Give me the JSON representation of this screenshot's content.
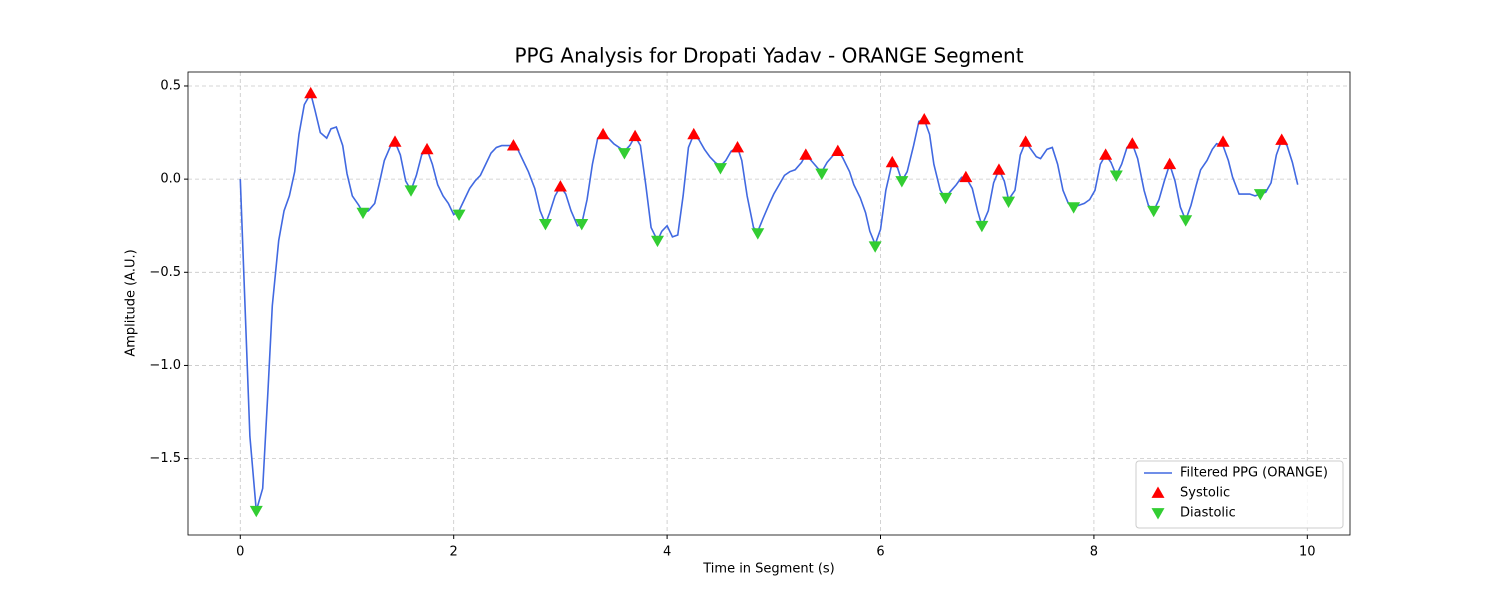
{
  "chart_data": {
    "type": "line",
    "title": "PPG Analysis for Dropati Yadav - ORANGE Segment",
    "x_label": "Time in Segment (s)",
    "y_label": "Amplitude (A.U.)",
    "xlim": [
      -0.49,
      10.4
    ],
    "ylim": [
      -1.91,
      0.575
    ],
    "xticks": [
      0,
      2,
      4,
      6,
      8,
      10
    ],
    "yticks": [
      {
        "value": -1.5,
        "label": "−1.5"
      },
      {
        "value": -1.0,
        "label": "−1.0"
      },
      {
        "value": -0.5,
        "label": "−0.5"
      },
      {
        "value": 0.0,
        "label": "0.0"
      },
      0.5
    ],
    "grid": true,
    "legend": "lower right",
    "series": [
      {
        "name": "Filtered PPG (ORANGE)",
        "color": "#4169e1",
        "kind": "line",
        "x": [
          0,
          0.09,
          0.15,
          0.21,
          0.26,
          0.3,
          0.36,
          0.41,
          0.46,
          0.51,
          0.55,
          0.6,
          0.66,
          0.7,
          0.75,
          0.81,
          0.85,
          0.9,
          0.96,
          1.0,
          1.05,
          1.11,
          1.15,
          1.2,
          1.26,
          1.3,
          1.35,
          1.41,
          1.45,
          1.5,
          1.55,
          1.6,
          1.65,
          1.7,
          1.75,
          1.8,
          1.85,
          1.9,
          1.95,
          2.0,
          2.05,
          2.1,
          2.15,
          2.2,
          2.25,
          2.3,
          2.35,
          2.4,
          2.45,
          2.5,
          2.56,
          2.6,
          2.65,
          2.7,
          2.76,
          2.81,
          2.86,
          2.9,
          2.95,
          3.0,
          3.05,
          3.1,
          3.16,
          3.2,
          3.25,
          3.3,
          3.35,
          3.4,
          3.45,
          3.5,
          3.55,
          3.6,
          3.65,
          3.7,
          3.75,
          3.8,
          3.85,
          3.91,
          3.95,
          4.0,
          4.05,
          4.1,
          4.15,
          4.2,
          4.25,
          4.3,
          4.35,
          4.4,
          4.45,
          4.5,
          4.55,
          4.6,
          4.66,
          4.7,
          4.75,
          4.81,
          4.85,
          4.9,
          4.96,
          5.0,
          5.05,
          5.1,
          5.15,
          5.2,
          5.26,
          5.3,
          5.35,
          5.41,
          5.45,
          5.5,
          5.56,
          5.6,
          5.65,
          5.71,
          5.75,
          5.81,
          5.86,
          5.9,
          5.95,
          6.0,
          6.05,
          6.11,
          6.16,
          6.2,
          6.25,
          6.31,
          6.36,
          6.41,
          6.46,
          6.5,
          6.56,
          6.61,
          6.65,
          6.71,
          6.76,
          6.8,
          6.86,
          6.91,
          6.95,
          7.01,
          7.06,
          7.11,
          7.16,
          7.2,
          7.26,
          7.31,
          7.36,
          7.41,
          7.46,
          7.5,
          7.56,
          7.61,
          7.66,
          7.71,
          7.76,
          7.81,
          7.86,
          7.91,
          7.96,
          8.01,
          8.06,
          8.11,
          8.16,
          8.21,
          8.26,
          8.31,
          8.36,
          8.41,
          8.47,
          8.51,
          8.56,
          8.61,
          8.66,
          8.71,
          8.76,
          8.81,
          8.86,
          8.91,
          8.96,
          9.0,
          9.06,
          9.11,
          9.15,
          9.21,
          9.26,
          9.3,
          9.36,
          9.41,
          9.46,
          9.51,
          9.56,
          9.61,
          9.66,
          9.71,
          9.76,
          9.81,
          9.86,
          9.91
        ],
        "values": [
          0,
          -1.38,
          -1.78,
          -1.66,
          -1.13,
          -0.68,
          -0.33,
          -0.17,
          -0.09,
          0.04,
          0.24,
          0.4,
          0.46,
          0.37,
          0.25,
          0.22,
          0.27,
          0.28,
          0.18,
          0.03,
          -0.09,
          -0.14,
          -0.18,
          -0.17,
          -0.13,
          -0.03,
          0.1,
          0.18,
          0.2,
          0.13,
          -0.01,
          -0.06,
          0.02,
          0.13,
          0.16,
          0.08,
          -0.03,
          -0.09,
          -0.13,
          -0.19,
          -0.17,
          -0.11,
          -0.05,
          -0.01,
          0.02,
          0.08,
          0.14,
          0.17,
          0.18,
          0.18,
          0.18,
          0.16,
          0.1,
          0.04,
          -0.05,
          -0.17,
          -0.24,
          -0.18,
          -0.09,
          -0.04,
          -0.08,
          -0.17,
          -0.25,
          -0.24,
          -0.11,
          0.08,
          0.22,
          0.24,
          0.22,
          0.19,
          0.17,
          0.15,
          0.18,
          0.23,
          0.18,
          -0.03,
          -0.26,
          -0.33,
          -0.28,
          -0.25,
          -0.31,
          -0.3,
          -0.09,
          0.17,
          0.24,
          0.21,
          0.16,
          0.12,
          0.09,
          0.07,
          0.1,
          0.15,
          0.17,
          0.1,
          -0.09,
          -0.26,
          -0.28,
          -0.21,
          -0.13,
          -0.08,
          -0.03,
          0.02,
          0.04,
          0.05,
          0.09,
          0.13,
          0.1,
          0.06,
          0.04,
          0.09,
          0.13,
          0.16,
          0.11,
          0.04,
          -0.03,
          -0.1,
          -0.18,
          -0.28,
          -0.35,
          -0.27,
          -0.06,
          0.09,
          0.06,
          -0.01,
          0.04,
          0.18,
          0.31,
          0.32,
          0.24,
          0.08,
          -0.06,
          -0.1,
          -0.07,
          -0.03,
          0.01,
          0.01,
          -0.05,
          -0.17,
          -0.25,
          -0.17,
          -0.02,
          0.05,
          -0.01,
          -0.11,
          -0.06,
          0.13,
          0.2,
          0.16,
          0.12,
          0.11,
          0.16,
          0.17,
          0.08,
          -0.06,
          -0.13,
          -0.15,
          -0.14,
          -0.13,
          -0.11,
          -0.06,
          0.08,
          0.13,
          0.09,
          0.02,
          0.08,
          0.17,
          0.19,
          0.11,
          -0.06,
          -0.14,
          -0.17,
          -0.11,
          -0.01,
          0.08,
          -0.01,
          -0.15,
          -0.22,
          -0.14,
          -0.03,
          0.05,
          0.1,
          0.16,
          0.19,
          0.18,
          0.1,
          0.01,
          -0.08,
          -0.08,
          -0.08,
          -0.09,
          -0.08,
          -0.07,
          -0.02,
          0.13,
          0.21,
          0.18,
          0.09,
          -0.03
        ]
      },
      {
        "name": "Systolic",
        "color": "#ff0000",
        "kind": "scatter",
        "marker": "up",
        "x": [
          0.66,
          1.45,
          1.75,
          2.56,
          3.0,
          3.4,
          3.7,
          4.25,
          4.66,
          5.3,
          5.6,
          6.11,
          6.41,
          6.8,
          7.11,
          7.36,
          8.11,
          8.36,
          8.71,
          9.21,
          9.76
        ],
        "values": [
          0.46,
          0.2,
          0.16,
          0.18,
          -0.04,
          0.24,
          0.23,
          0.24,
          0.17,
          0.13,
          0.15,
          0.09,
          0.32,
          0.01,
          0.05,
          0.2,
          0.13,
          0.19,
          0.08,
          0.2,
          0.21
        ]
      },
      {
        "name": "Diastolic",
        "color": "#32cd32",
        "kind": "scatter",
        "marker": "down",
        "x": [
          0.15,
          1.15,
          1.6,
          2.05,
          2.86,
          3.2,
          3.6,
          3.91,
          4.5,
          4.85,
          5.45,
          5.95,
          6.2,
          6.61,
          6.95,
          7.2,
          7.81,
          8.21,
          8.56,
          8.86,
          9.56
        ],
        "values": [
          -1.78,
          -0.18,
          -0.06,
          -0.19,
          -0.24,
          -0.24,
          0.14,
          -0.33,
          0.06,
          -0.29,
          0.03,
          -0.36,
          -0.01,
          -0.1,
          -0.25,
          -0.12,
          -0.15,
          0.02,
          -0.17,
          -0.22,
          -0.08
        ]
      }
    ]
  }
}
